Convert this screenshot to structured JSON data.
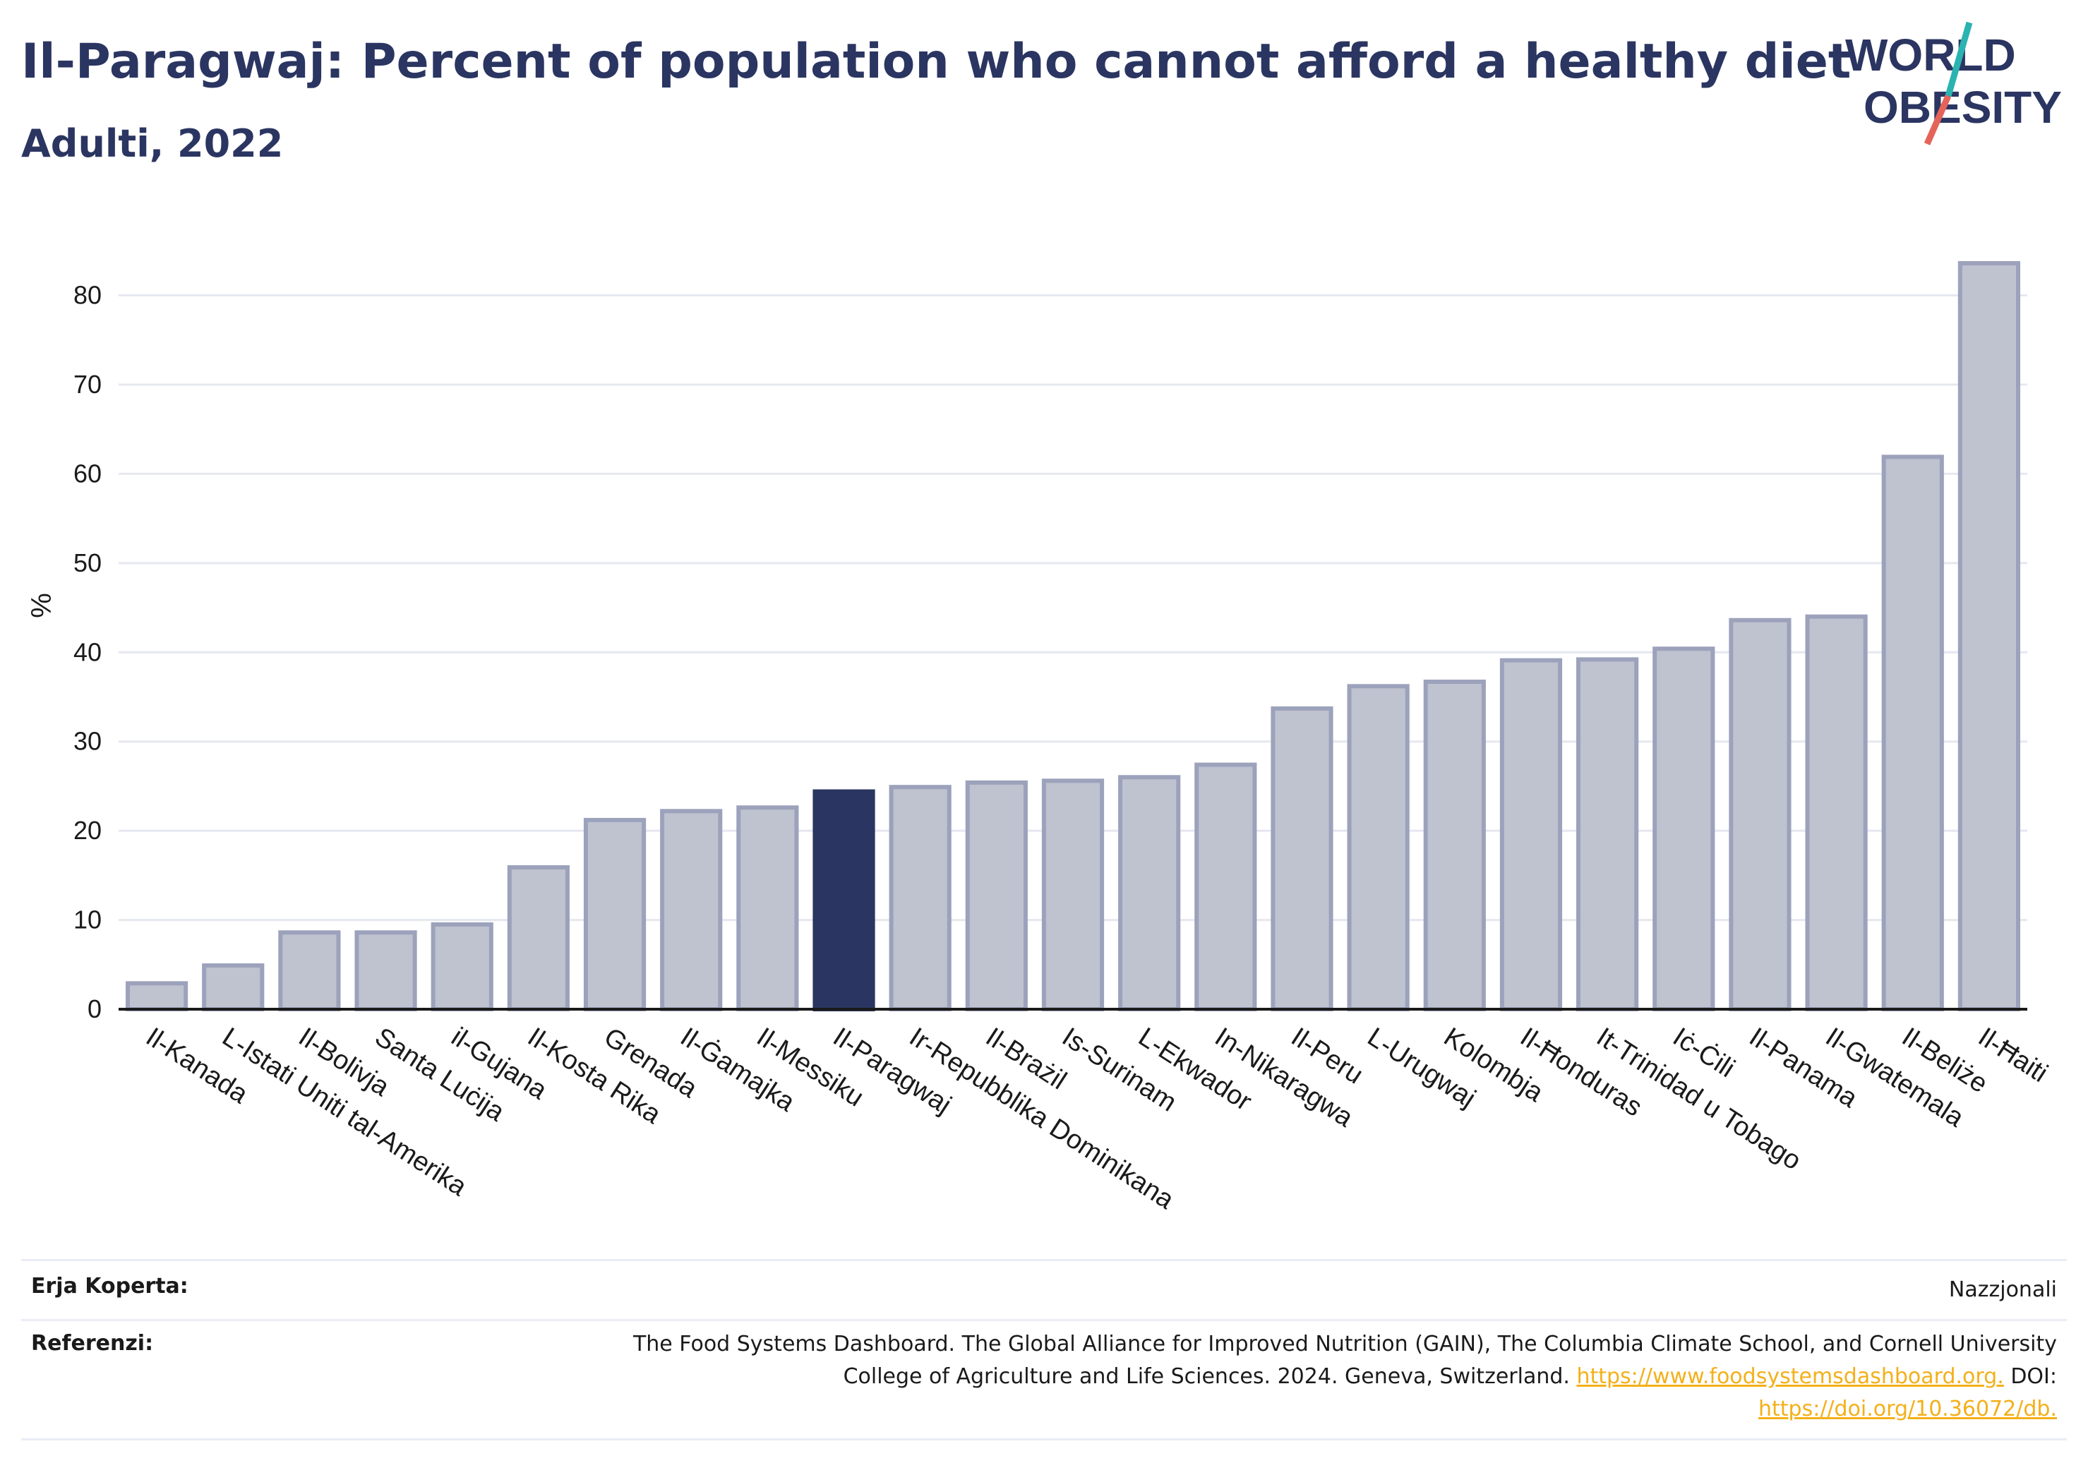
{
  "header": {
    "title": "Il-Paragwaj: Percent of population who cannot afford a healthy diet",
    "subtitle": "Adulti, 2022"
  },
  "logo": {
    "line1": "WORLD",
    "line2": "OBESITY"
  },
  "colors": {
    "highlight": "#2b3561",
    "bar_fill": "#bfc2cf",
    "bar_stroke": "#9ca2bb",
    "title": "#2b3561",
    "link": "#f3b01a",
    "logo_teal": "#2ab3b1",
    "logo_red": "#e5645a"
  },
  "chart_data": {
    "type": "bar",
    "title": "Il-Paragwaj: Percent of population who cannot afford a healthy diet",
    "subtitle": "Adulti, 2022",
    "ylabel": "%",
    "xlabel": "",
    "ylim": [
      0,
      87
    ],
    "yticks": [
      0,
      10,
      20,
      30,
      40,
      50,
      60,
      70,
      80
    ],
    "grid": true,
    "highlight": "Il-Paragwaj",
    "categories": [
      "Il-Kanada",
      "L-Istati Uniti tal-Amerika",
      "Il-Bolivja",
      "Santa Luċija",
      "il-Gujana",
      "Il-Kosta Rika",
      "Grenada",
      "Il-Ġamajka",
      "Il-Messiku",
      "Il-Paragwaj",
      "Ir-Repubblika Dominikana",
      "Il-Brażil",
      "Is-Surinam",
      "L-Ekwador",
      "In-Nikaragwa",
      "Il-Peru",
      "L-Urugwaj",
      "Kolombja",
      "Il-Ħonduras",
      "It-Trinidad u Tobago",
      "Iċ-Ċili",
      "Il-Panama",
      "Il-Gwatemala",
      "Il-Beliże",
      "Il-Ħaiti"
    ],
    "values": [
      2.9,
      4.9,
      8.6,
      8.6,
      9.5,
      15.9,
      21.2,
      22.2,
      22.6,
      24.4,
      24.9,
      25.4,
      25.6,
      26.0,
      27.4,
      33.7,
      36.2,
      36.7,
      39.1,
      39.2,
      40.4,
      43.6,
      44.0,
      61.9,
      83.6
    ]
  },
  "footer": {
    "coverage_label": "Erja Koperta:",
    "coverage_value": "Nazzjonali",
    "references_label": "Referenzi:",
    "ref_line1": "The Food Systems Dashboard. The Global Alliance for Improved Nutrition (GAIN), The Columbia Climate School, and Cornell University",
    "ref_line2_text": "College of Agriculture and Life Sciences. 2024. Geneva, Switzerland. ",
    "ref_link1": "https://www.foodsystemsdashboard.org.",
    "ref_doi_label": " DOI:",
    "ref_link2": "https://doi.org/10.36072/db."
  }
}
